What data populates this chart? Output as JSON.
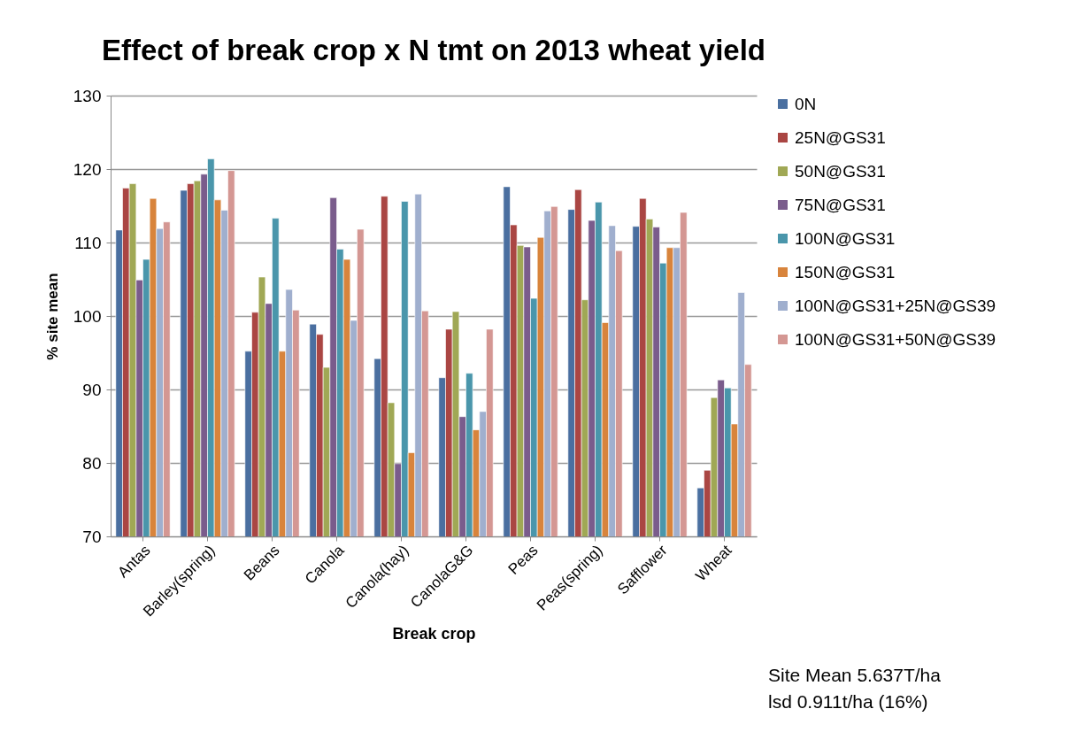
{
  "chart_data": {
    "type": "bar",
    "title": "Effect of break crop x N tmt on 2013 wheat yield",
    "xlabel": "Break crop",
    "ylabel": "% site mean",
    "categories": [
      "Antas",
      "Barley(spring)",
      "Beans",
      "Canola",
      "Canola(hay)",
      "CanolaG&G",
      "Peas",
      "Peas(spring)",
      "Safflower",
      "Wheat"
    ],
    "series": [
      {
        "name": "0N",
        "color": "#4a6fa0",
        "values": [
          111.7,
          117.1,
          95.2,
          98.9,
          94.2,
          91.6,
          117.6,
          114.5,
          112.2,
          76.6
        ]
      },
      {
        "name": "25N@GS31",
        "color": "#aa4643",
        "values": [
          117.4,
          118.0,
          100.5,
          97.5,
          116.3,
          98.2,
          112.4,
          117.2,
          116.0,
          79.0
        ]
      },
      {
        "name": "50N@GS31",
        "color": "#a0a855",
        "values": [
          118.0,
          118.4,
          105.3,
          93.0,
          88.2,
          100.6,
          109.6,
          102.2,
          113.2,
          88.9
        ]
      },
      {
        "name": "75N@GS31",
        "color": "#7a5c8c",
        "values": [
          104.9,
          119.3,
          101.7,
          116.1,
          79.9,
          86.3,
          109.4,
          113.0,
          112.1,
          91.3
        ]
      },
      {
        "name": "100N@GS31",
        "color": "#4a96ab",
        "values": [
          107.7,
          121.4,
          113.3,
          109.1,
          115.6,
          92.2,
          102.4,
          115.5,
          107.2,
          90.2
        ]
      },
      {
        "name": "150N@GS31",
        "color": "#d8843c",
        "values": [
          116.0,
          115.8,
          95.2,
          107.7,
          81.4,
          84.5,
          110.7,
          99.1,
          109.3,
          85.3
        ]
      },
      {
        "name": "100N@GS31+25N@GS39",
        "color": "#a0afce",
        "values": [
          111.9,
          114.4,
          103.6,
          99.4,
          116.6,
          87.0,
          114.3,
          112.3,
          109.3,
          103.2
        ]
      },
      {
        "name": "100N@GS31+50N@GS39",
        "color": "#d49793",
        "values": [
          112.8,
          119.8,
          100.8,
          111.8,
          100.7,
          98.2,
          114.9,
          108.9,
          114.1,
          93.4
        ]
      }
    ],
    "ylim": [
      70,
      130
    ],
    "yticks": [
      70,
      80,
      90,
      100,
      110,
      120,
      130
    ],
    "grid": "y",
    "legend": "right",
    "annotations": [
      "Site Mean 5.637T/ha",
      "lsd 0.911t/ha (16%)"
    ]
  }
}
